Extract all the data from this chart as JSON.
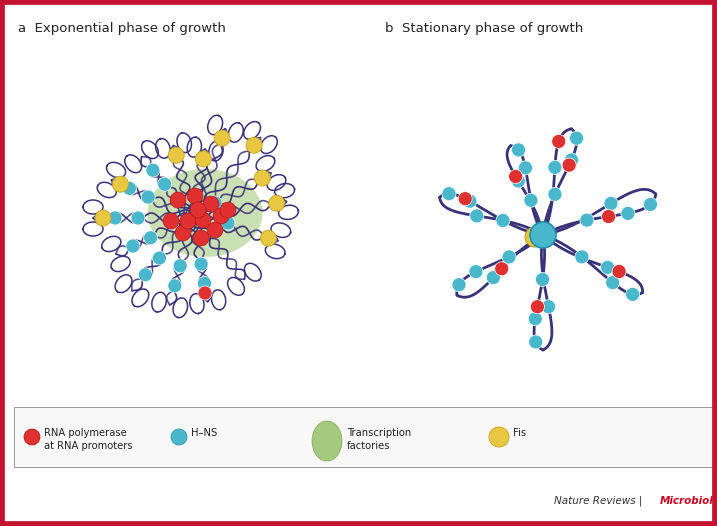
{
  "bg_color": "#ffffff",
  "border_color": "#c41230",
  "border_width": 7,
  "title_a": "a  Exponential phase of growth",
  "title_b": "b  Stationary phase of growth",
  "dna_color": "#3a3278",
  "hns_color": "#4ab8cc",
  "rna_pol_color": "#e03030",
  "fis_color": "#e8c840",
  "transcription_factory_color": "#88bb55",
  "footer_normal": "Nature Reviews | ",
  "footer_bold": "Microbiology",
  "footer_color_normal": "#333333",
  "footer_color_bold": "#cc0022"
}
